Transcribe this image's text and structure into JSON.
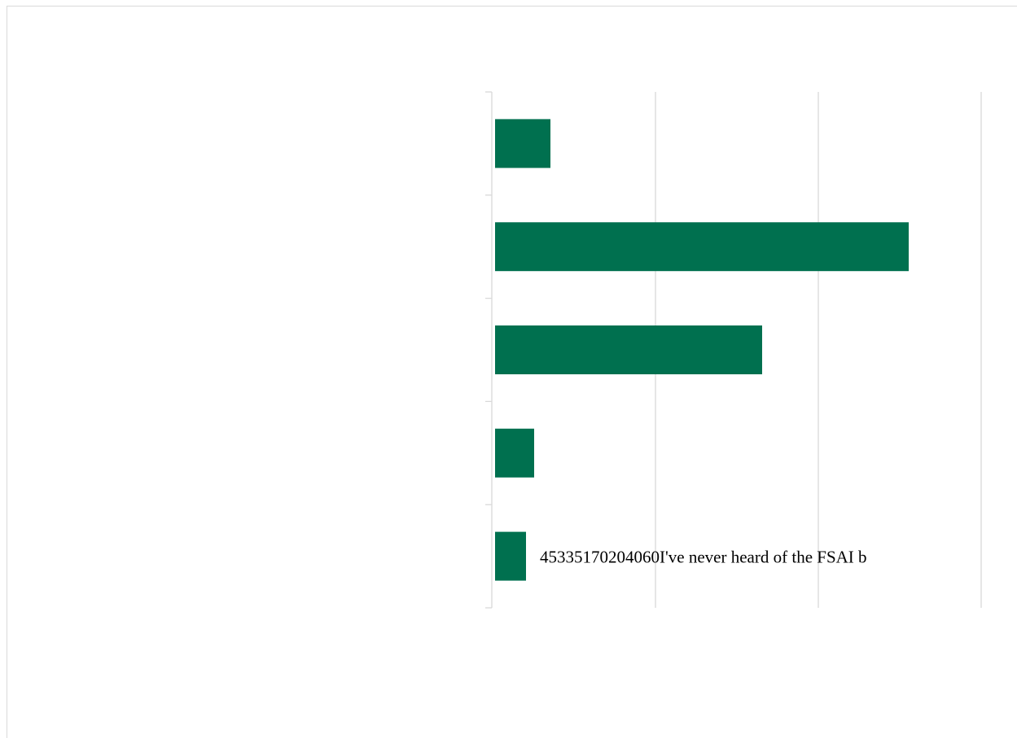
{
  "chart_data": {
    "type": "bar",
    "orientation": "horizontal",
    "categories": [
      "",
      "",
      "",
      "",
      ""
    ],
    "values": [
      7,
      51,
      33,
      5,
      4
    ],
    "xlim": [
      0,
      65
    ],
    "grid": true,
    "bar_color": "#00704f",
    "data_label_text": "45335170204060I've never heard of the FSAI b"
  }
}
